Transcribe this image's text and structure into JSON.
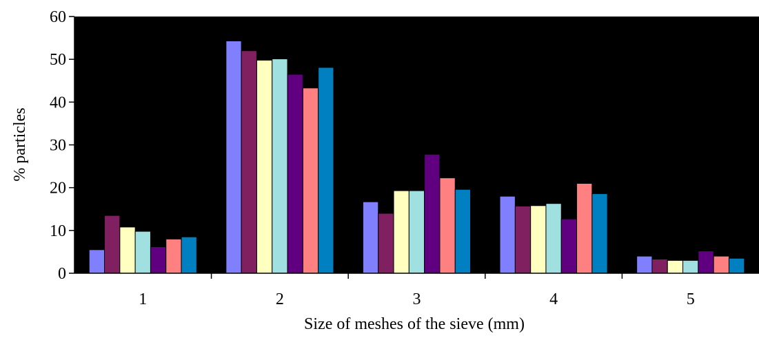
{
  "chart_data": {
    "type": "bar",
    "xlabel": "Size of meshes of the sieve (mm)",
    "ylabel": "% particles",
    "ylim": [
      0,
      60
    ],
    "yticks": [
      0,
      10,
      20,
      30,
      40,
      50,
      60
    ],
    "categories": [
      "1",
      "2",
      "3",
      "4",
      "5"
    ],
    "plot_background": "#000000",
    "grid": false,
    "legend": "none",
    "series": [
      {
        "color": "#8080FF",
        "values": [
          5.5,
          54.3,
          16.7,
          18.0,
          4.0
        ]
      },
      {
        "color": "#802060",
        "values": [
          13.5,
          52.0,
          14.0,
          15.7,
          3.3
        ]
      },
      {
        "color": "#FFFFC0",
        "values": [
          10.8,
          49.8,
          19.3,
          15.8,
          3.0
        ]
      },
      {
        "color": "#A0E0E0",
        "values": [
          9.8,
          50.1,
          19.3,
          16.3,
          3.0
        ]
      },
      {
        "color": "#600080",
        "values": [
          6.2,
          46.5,
          27.8,
          12.7,
          5.2
        ]
      },
      {
        "color": "#FF8080",
        "values": [
          8.0,
          43.3,
          22.3,
          21.0,
          4.0
        ]
      },
      {
        "color": "#0080C0",
        "values": [
          8.5,
          48.1,
          19.6,
          18.6,
          3.5
        ]
      }
    ]
  }
}
